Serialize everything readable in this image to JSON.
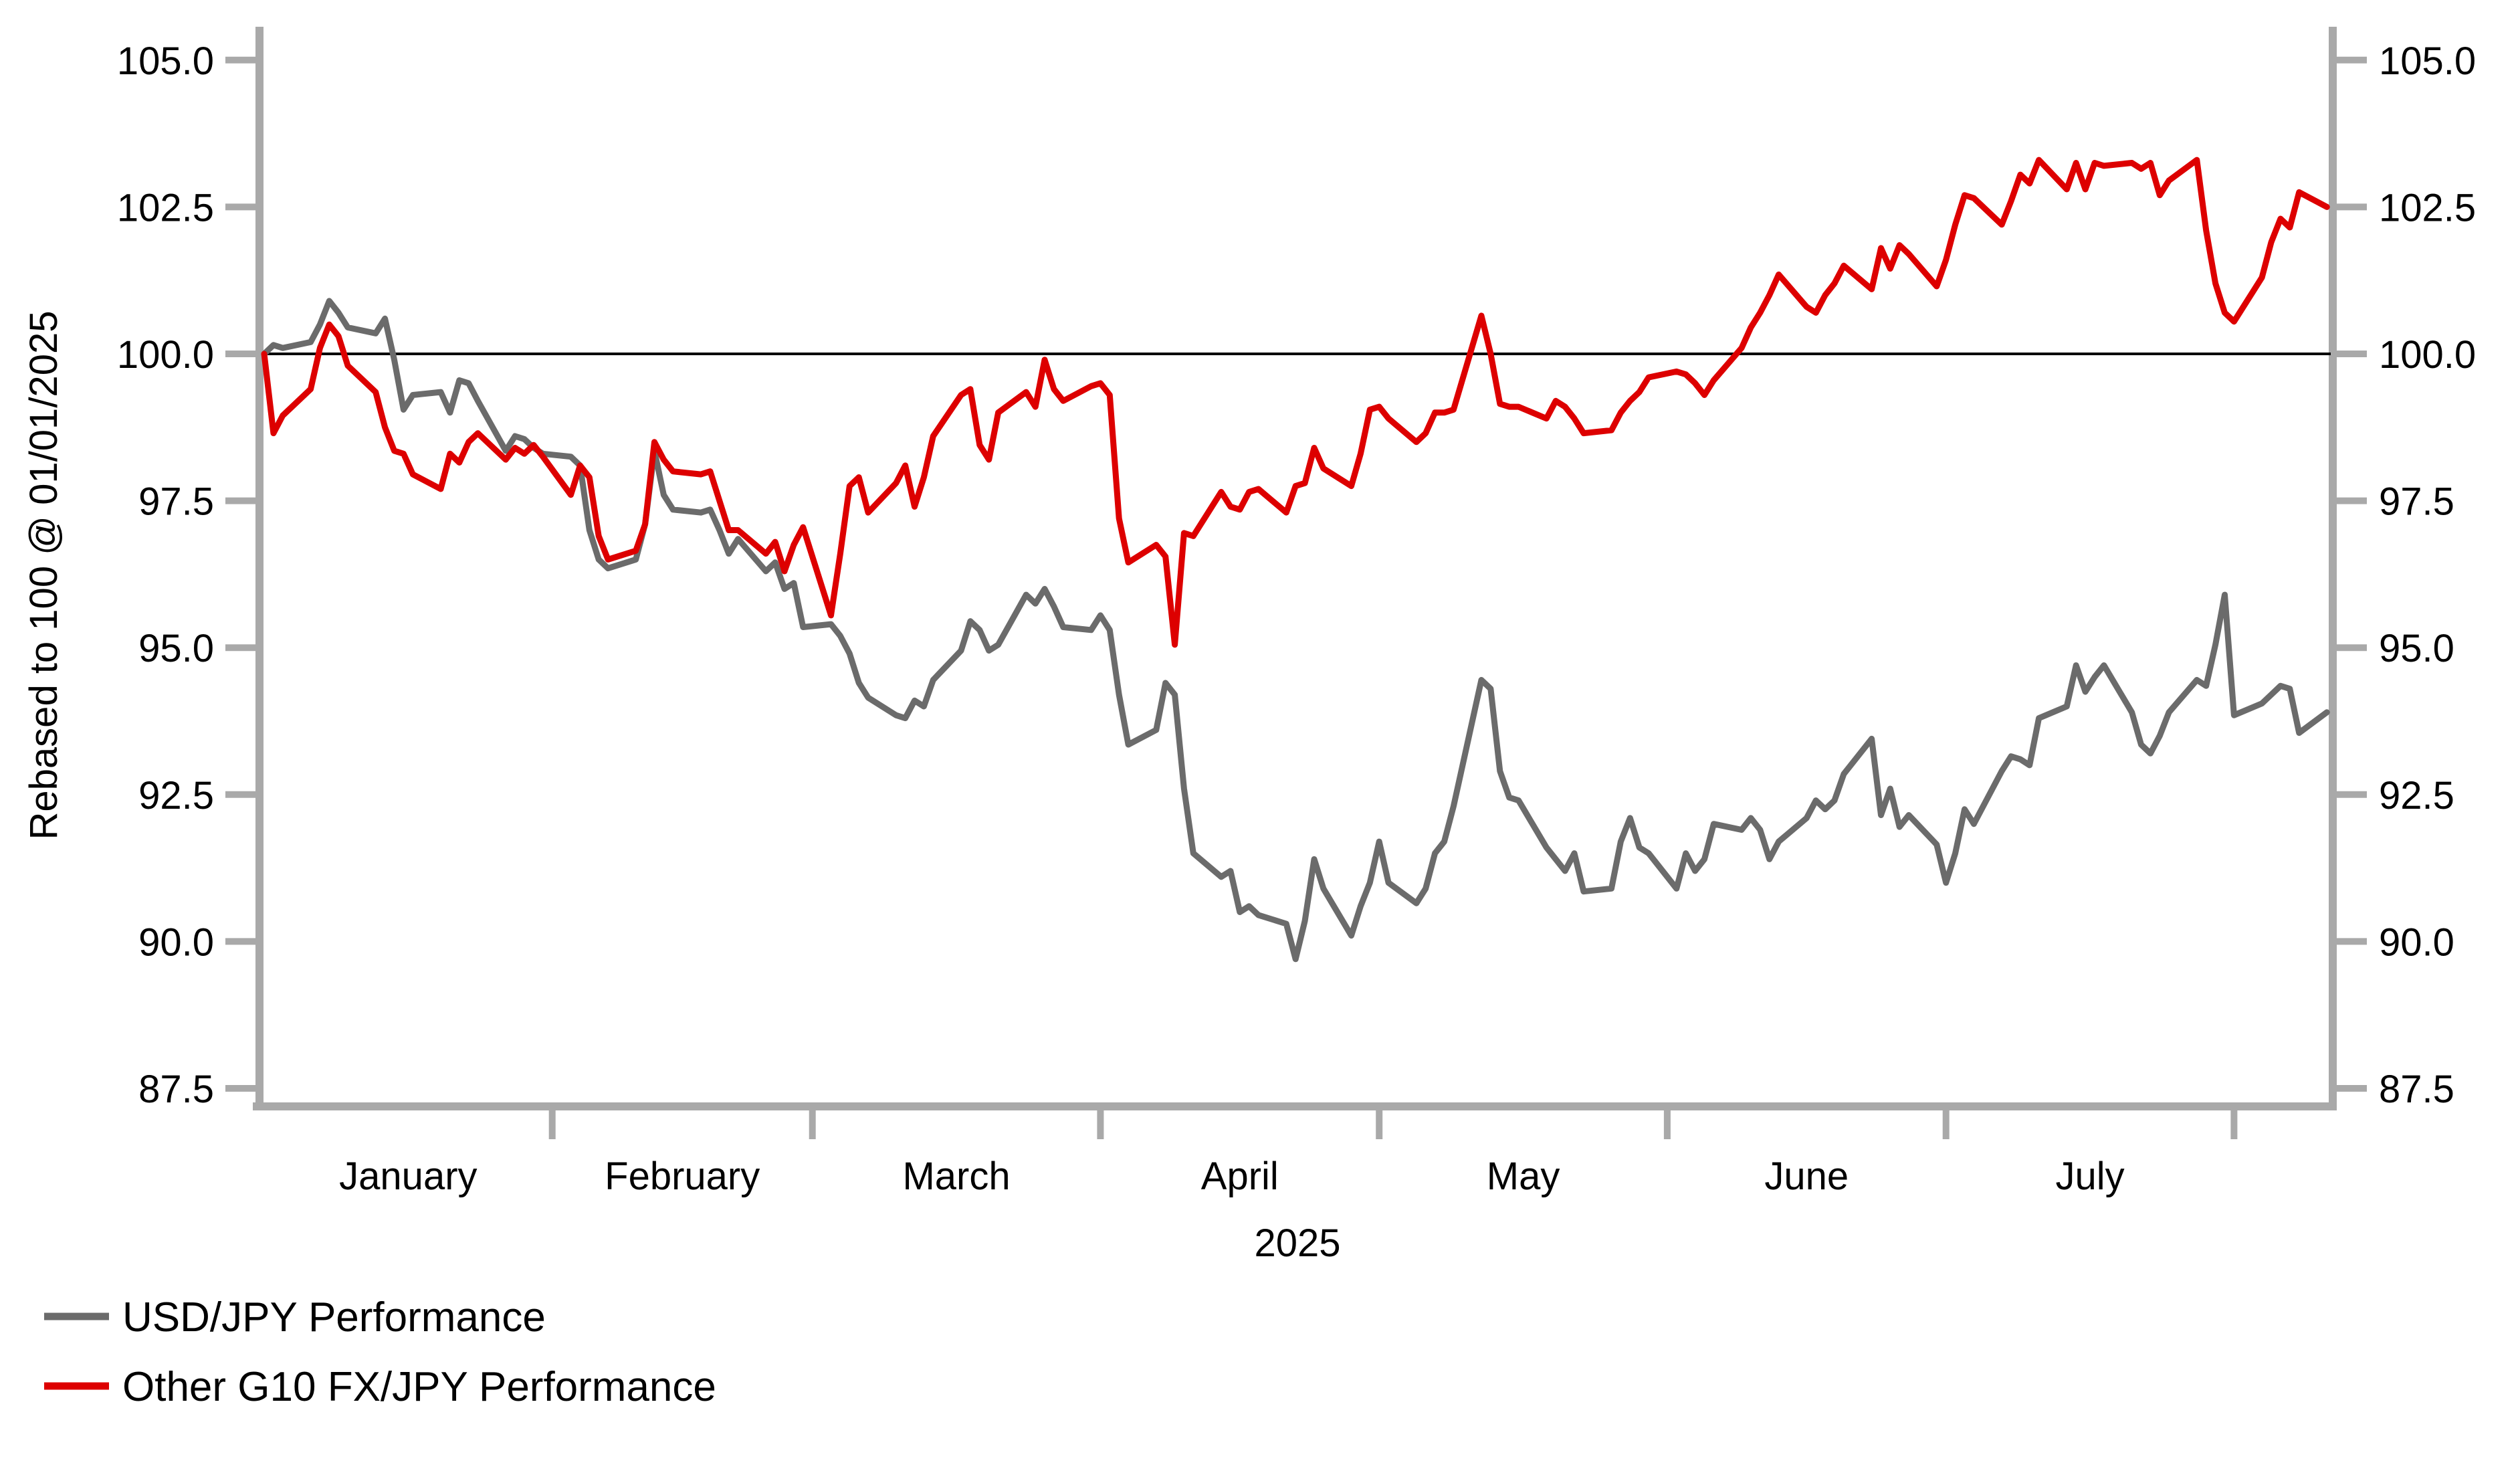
{
  "chart_data": {
    "type": "line",
    "title": "",
    "ylabel": "Rebased to 100 @ 01/01/2025",
    "xlabel_year": "2025",
    "x_month_labels": [
      "January",
      "February",
      "March",
      "April",
      "May",
      "June",
      "July"
    ],
    "y_ticks": [
      87.5,
      90.0,
      92.5,
      95.0,
      97.5,
      100.0,
      102.5,
      105.0
    ],
    "ylim": [
      87.5,
      105.0
    ],
    "baseline": 100.0,
    "grid": false,
    "legend_position": "bottom-left",
    "axis_color": "#a9a9a9",
    "baseline_color": "#000000",
    "x_dates": [
      "1-1",
      "1-2",
      "1-3",
      "1-6",
      "1-7",
      "1-8",
      "1-9",
      "1-10",
      "1-13",
      "1-14",
      "1-15",
      "1-16",
      "1-17",
      "1-20",
      "1-21",
      "1-22",
      "1-23",
      "1-24",
      "1-27",
      "1-28",
      "1-29",
      "1-30",
      "1-31",
      "2-3",
      "2-4",
      "2-5",
      "2-6",
      "2-7",
      "2-10",
      "2-11",
      "2-12",
      "2-13",
      "2-14",
      "2-17",
      "2-18",
      "2-19",
      "2-20",
      "2-21",
      "2-24",
      "2-25",
      "2-26",
      "2-27",
      "2-28",
      "3-3",
      "3-4",
      "3-5",
      "3-6",
      "3-7",
      "3-10",
      "3-11",
      "3-12",
      "3-13",
      "3-14",
      "3-17",
      "3-18",
      "3-19",
      "3-20",
      "3-21",
      "3-24",
      "3-25",
      "3-26",
      "3-27",
      "3-28",
      "3-31",
      "4-1",
      "4-2",
      "4-3",
      "4-4",
      "4-7",
      "4-8",
      "4-9",
      "4-10",
      "4-11",
      "4-14",
      "4-15",
      "4-16",
      "4-17",
      "4-18",
      "4-21",
      "4-22",
      "4-23",
      "4-24",
      "4-25",
      "4-28",
      "4-29",
      "4-30",
      "5-1",
      "5-2",
      "5-5",
      "5-6",
      "5-7",
      "5-8",
      "5-9",
      "5-12",
      "5-13",
      "5-14",
      "5-15",
      "5-16",
      "5-19",
      "5-20",
      "5-21",
      "5-22",
      "5-23",
      "5-26",
      "5-27",
      "5-28",
      "5-29",
      "5-30",
      "6-2",
      "6-3",
      "6-4",
      "6-5",
      "6-6",
      "6-9",
      "6-10",
      "6-11",
      "6-12",
      "6-13",
      "6-16",
      "6-17",
      "6-18",
      "6-19",
      "6-20",
      "6-23",
      "6-24",
      "6-25",
      "6-26",
      "6-27",
      "6-30",
      "7-1",
      "7-2",
      "7-3",
      "7-4",
      "7-7",
      "7-8",
      "7-9",
      "7-10",
      "7-11",
      "7-14",
      "7-15",
      "7-16",
      "7-17",
      "7-18",
      "7-21",
      "7-22",
      "7-23",
      "7-24",
      "7-25",
      "7-28",
      "7-29",
      "7-30",
      "7-31",
      "8-1",
      "8-4",
      "8-5",
      "8-6",
      "8-7",
      "8-8",
      "8-11"
    ],
    "series": [
      {
        "name": "USD/JPY Performance",
        "color": "#6b6b6b",
        "values": [
          100.0,
          100.15,
          100.1,
          100.2,
          100.5,
          100.9,
          100.7,
          100.45,
          100.35,
          100.6,
          99.9,
          99.05,
          99.3,
          99.35,
          99.0,
          99.55,
          99.5,
          99.2,
          98.35,
          98.6,
          98.55,
          98.4,
          98.3,
          98.25,
          98.1,
          97.0,
          96.5,
          96.35,
          96.5,
          97.1,
          98.35,
          97.6,
          97.35,
          97.3,
          97.35,
          97.0,
          96.6,
          96.85,
          96.3,
          96.45,
          96.0,
          96.1,
          95.35,
          95.4,
          95.2,
          94.9,
          94.4,
          94.15,
          93.85,
          93.8,
          94.1,
          94.0,
          94.45,
          94.95,
          95.45,
          95.3,
          94.95,
          95.05,
          95.9,
          95.75,
          96.0,
          95.7,
          95.35,
          95.3,
          95.55,
          95.3,
          94.2,
          93.35,
          93.6,
          94.4,
          94.2,
          92.6,
          91.5,
          91.1,
          91.2,
          90.5,
          90.6,
          90.45,
          90.3,
          89.7,
          90.35,
          91.4,
          90.9,
          90.1,
          90.6,
          91.0,
          91.7,
          91.0,
          90.65,
          90.9,
          91.5,
          91.7,
          92.3,
          94.45,
          94.3,
          92.9,
          92.45,
          92.4,
          91.6,
          91.4,
          91.2,
          91.5,
          90.85,
          90.9,
          91.7,
          92.1,
          91.6,
          91.5,
          90.9,
          91.5,
          91.2,
          91.4,
          92.0,
          91.9,
          92.1,
          91.9,
          91.4,
          91.7,
          92.1,
          92.4,
          92.25,
          92.4,
          92.85,
          93.45,
          92.15,
          92.6,
          91.95,
          92.15,
          91.65,
          91.0,
          91.5,
          92.25,
          92.0,
          92.9,
          93.15,
          93.1,
          93.0,
          93.8,
          94.0,
          94.7,
          94.25,
          94.5,
          94.7,
          93.9,
          93.35,
          93.2,
          93.5,
          93.9,
          94.45,
          94.35,
          95.05,
          95.9,
          93.85,
          94.05,
          94.2,
          94.35,
          94.3,
          93.55,
          93.9
        ]
      },
      {
        "name": "Other G10 FX/JPY Performance",
        "color": "#dd0000",
        "values": [
          100.0,
          98.65,
          98.95,
          99.4,
          100.1,
          100.5,
          100.3,
          99.8,
          99.35,
          98.75,
          98.35,
          98.3,
          97.95,
          97.7,
          98.3,
          98.15,
          98.5,
          98.65,
          98.2,
          98.4,
          98.3,
          98.45,
          98.25,
          97.6,
          98.1,
          97.9,
          96.9,
          96.5,
          96.65,
          97.1,
          98.5,
          98.2,
          98.0,
          97.95,
          98.0,
          97.5,
          97.0,
          97.0,
          96.6,
          96.8,
          96.3,
          96.75,
          97.05,
          95.55,
          96.6,
          97.75,
          97.9,
          97.3,
          97.8,
          98.1,
          97.4,
          97.9,
          98.6,
          99.3,
          99.4,
          98.45,
          98.2,
          99.0,
          99.35,
          99.1,
          99.9,
          99.4,
          99.2,
          99.45,
          99.5,
          99.3,
          97.2,
          96.45,
          96.75,
          96.55,
          95.05,
          96.95,
          96.9,
          97.65,
          97.4,
          97.35,
          97.65,
          97.7,
          97.3,
          97.75,
          97.8,
          98.4,
          98.05,
          97.75,
          98.3,
          99.05,
          99.1,
          98.9,
          98.5,
          98.65,
          99.0,
          99.0,
          99.05,
          100.65,
          100.0,
          99.15,
          99.1,
          99.1,
          98.9,
          99.2,
          99.1,
          98.9,
          98.65,
          98.7,
          99.0,
          99.2,
          99.35,
          99.6,
          99.7,
          99.65,
          99.5,
          99.3,
          99.55,
          100.1,
          100.45,
          100.7,
          101.0,
          101.35,
          100.8,
          100.7,
          101.0,
          101.2,
          101.5,
          101.1,
          101.8,
          101.45,
          101.85,
          101.7,
          101.15,
          101.6,
          102.2,
          102.7,
          102.65,
          102.2,
          102.6,
          103.05,
          102.9,
          103.3,
          102.8,
          103.25,
          102.8,
          103.25,
          103.2,
          103.25,
          103.15,
          103.25,
          102.7,
          102.95,
          103.3,
          102.1,
          101.2,
          100.7,
          100.55,
          101.3,
          101.9,
          102.3,
          102.15,
          102.75,
          102.5
        ]
      }
    ]
  }
}
